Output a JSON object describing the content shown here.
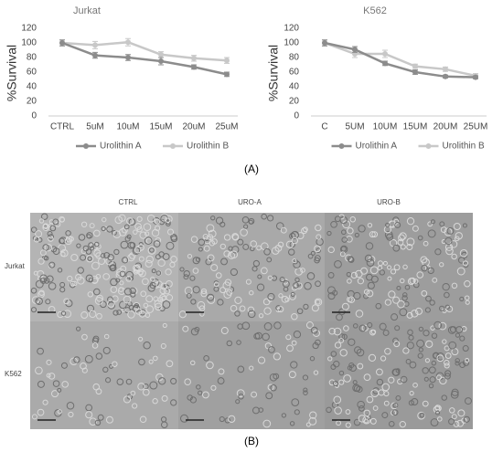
{
  "chart_data": [
    {
      "type": "line",
      "title": "Jurkat",
      "y_label": "%Survival",
      "categories": [
        "CTRL",
        "5uM",
        "10uM",
        "15uM",
        "20uM",
        "25uM"
      ],
      "series": [
        {
          "name": "Urolithin A",
          "color": "#8c8c8c",
          "values": [
            100,
            83,
            80,
            75,
            67,
            57
          ],
          "errors": [
            4,
            4,
            4,
            5,
            3,
            3
          ]
        },
        {
          "name": "Urolithin B",
          "color": "#c8c8c8",
          "values": [
            100,
            97,
            101,
            84,
            79,
            76
          ],
          "errors": [
            4,
            5,
            5,
            4,
            4,
            4
          ]
        }
      ],
      "ylim": [
        0,
        120
      ],
      "yticks": [
        0,
        20,
        40,
        60,
        80,
        100,
        120
      ]
    },
    {
      "type": "line",
      "title": "K562",
      "y_label": "%Survival",
      "categories": [
        "C",
        "5UM",
        "10UM",
        "15UM",
        "20UM",
        "25UM"
      ],
      "series": [
        {
          "name": "Urolithin A",
          "color": "#8c8c8c",
          "values": [
            100,
            91,
            72,
            60,
            54,
            53
          ],
          "errors": [
            4,
            4,
            3,
            3,
            2,
            2
          ]
        },
        {
          "name": "Urolithin B",
          "color": "#c8c8c8",
          "values": [
            100,
            85,
            85,
            68,
            64,
            55
          ],
          "errors": [
            4,
            5,
            5,
            3,
            3,
            3
          ]
        }
      ],
      "ylim": [
        0,
        120
      ],
      "yticks": [
        0,
        20,
        40,
        60,
        80,
        100,
        120
      ]
    }
  ],
  "panel_labels": [
    "(A)",
    "(B)"
  ],
  "image_grid": {
    "columns": [
      "CTRL",
      "URO-A",
      "URO-B"
    ],
    "rows": [
      "Jurkat",
      "K562"
    ]
  }
}
